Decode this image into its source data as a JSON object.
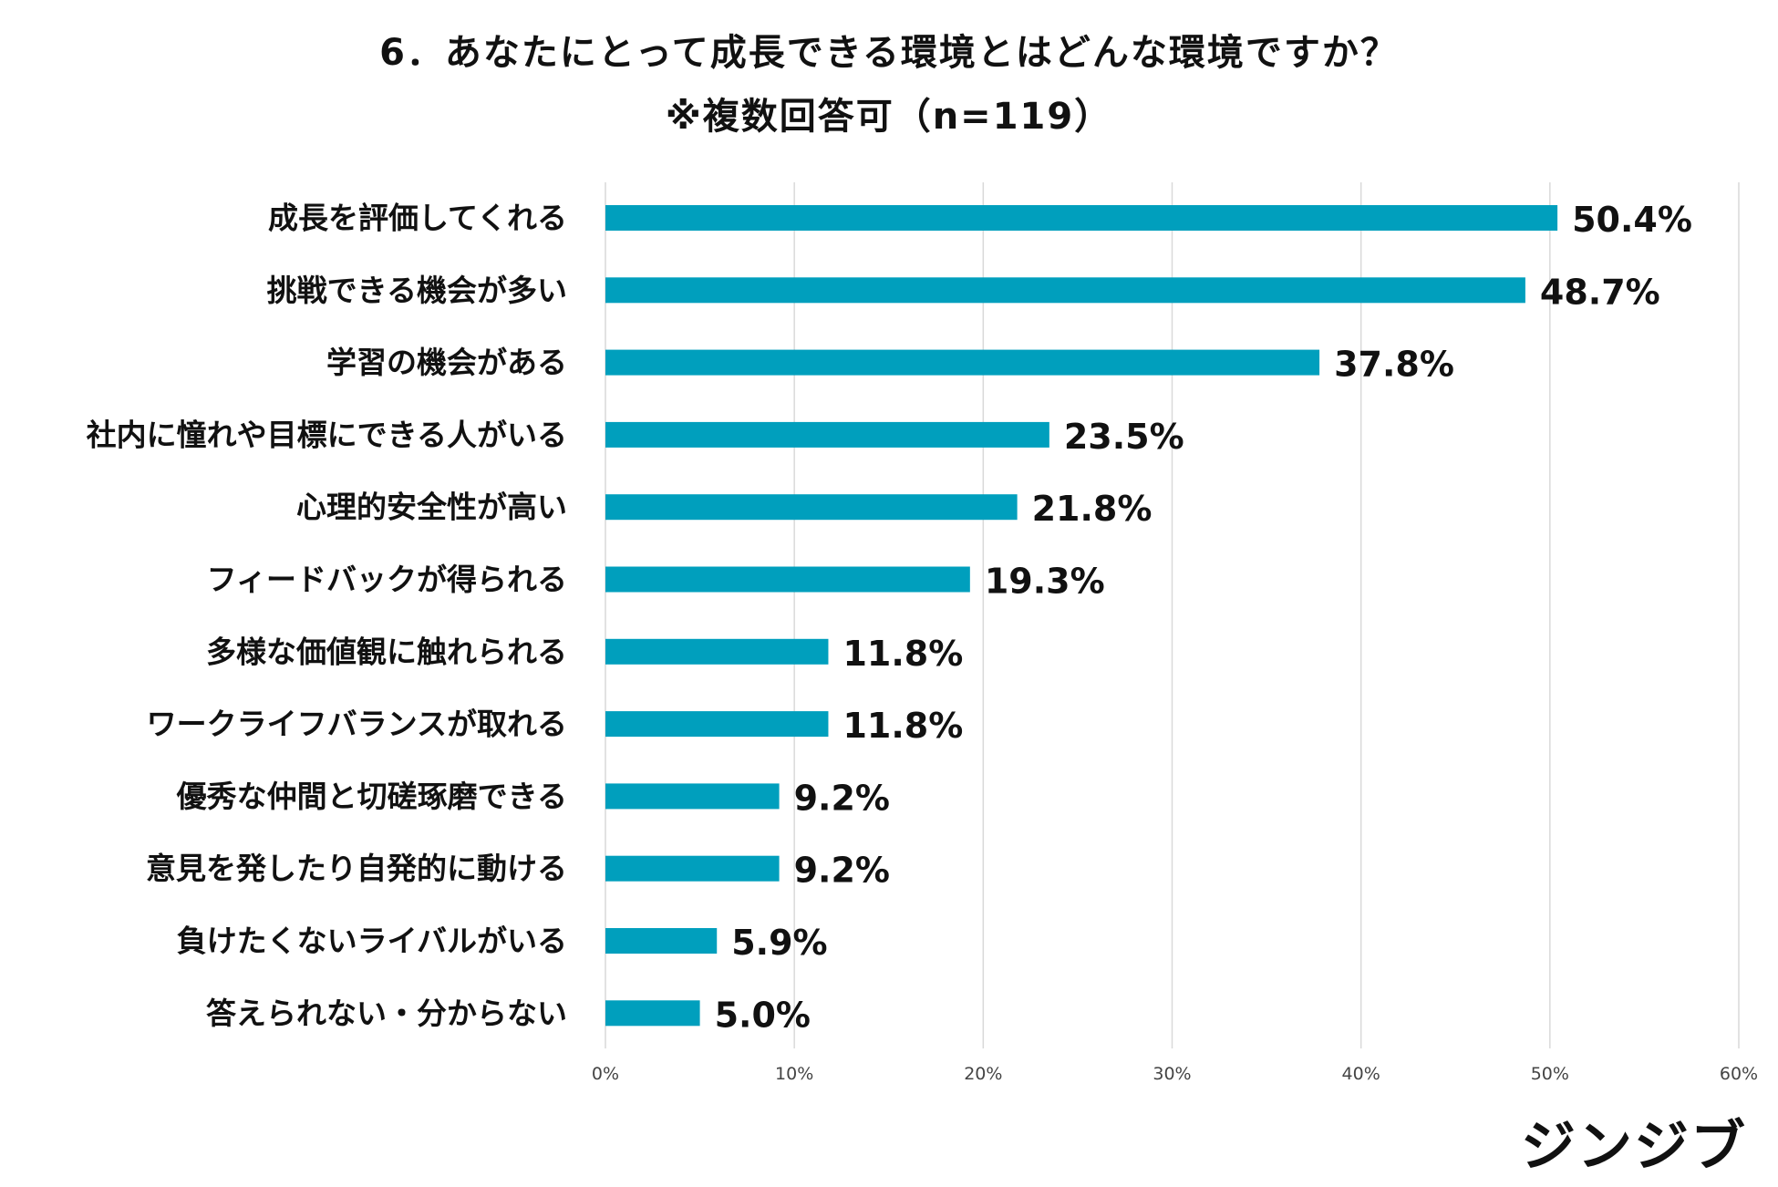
{
  "title": "6．あなたにとって成長できる環境とはどんな環境ですか？",
  "subtitle": "※複数回答可（n=119）",
  "brand": "ジンジブ",
  "colors": {
    "bar": "#009fbd",
    "grid": "#d9d9d9",
    "text": "#111111"
  },
  "chart_data": {
    "type": "bar",
    "orientation": "horizontal",
    "title": "6．あなたにとって成長できる環境とはどんな環境ですか？",
    "subtitle": "※複数回答可（n=119）",
    "xlabel": "",
    "ylabel": "",
    "xlim": [
      0,
      60
    ],
    "grid": "vertical",
    "legend": "none",
    "categories": [
      "成長を評価してくれる",
      "挑戦できる機会が多い",
      "学習の機会がある",
      "社内に憧れや目標にできる人がいる",
      "心理的安全性が高い",
      "フィードバックが得られる",
      "多様な価値観に触れられる",
      "ワークライフバランスが取れる",
      "優秀な仲間と切磋琢磨できる",
      "意見を発したり自発的に動ける",
      "負けたくないライバルがいる",
      "答えられない・分からない"
    ],
    "values": [
      50.4,
      48.7,
      37.8,
      23.5,
      21.8,
      19.3,
      11.8,
      11.8,
      9.2,
      9.2,
      5.9,
      5.0
    ],
    "value_labels": [
      "50.4%",
      "48.7%",
      "37.8%",
      "23.5%",
      "21.8%",
      "19.3%",
      "11.8%",
      "11.8%",
      "9.2%",
      "9.2%",
      "5.9%",
      "5.0%"
    ],
    "ticks": [
      0,
      10,
      20,
      30,
      40,
      50,
      60
    ],
    "tick_labels": [
      "0%",
      "10%",
      "20%",
      "30%",
      "40%",
      "50%",
      "60%"
    ]
  }
}
